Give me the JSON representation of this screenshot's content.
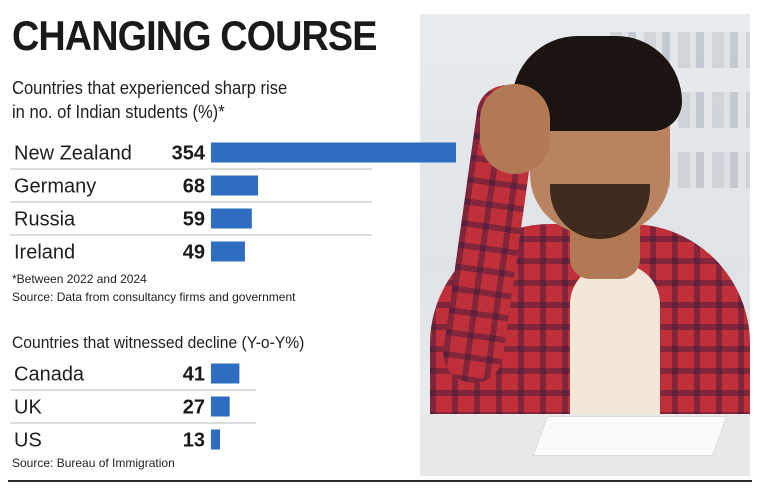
{
  "headline": "CHANGING COURSE",
  "colors": {
    "bar": "#2e6dbf",
    "text": "#1a1a1a"
  },
  "chart_data": [
    {
      "type": "bar",
      "orientation": "horizontal",
      "title": "Countries that experienced sharp rise in no. of Indian students (%)*",
      "title_lines": [
        "Countries that experienced sharp rise",
        "in  no. of Indian students (%)*"
      ],
      "categories": [
        "New Zealand",
        "Germany",
        "Russia",
        "Ireland"
      ],
      "values": [
        354,
        68,
        59,
        49
      ],
      "footnote": "*Between 2022 and 2024",
      "source": "Source: Data from consultancy firms and government"
    },
    {
      "type": "bar",
      "orientation": "horizontal",
      "title": "Countries that witnessed decline (Y-o-Y%)",
      "categories": [
        "Canada",
        "UK",
        "US"
      ],
      "values": [
        41,
        27,
        13
      ],
      "source": "Source: Bureau of Immigration"
    }
  ]
}
